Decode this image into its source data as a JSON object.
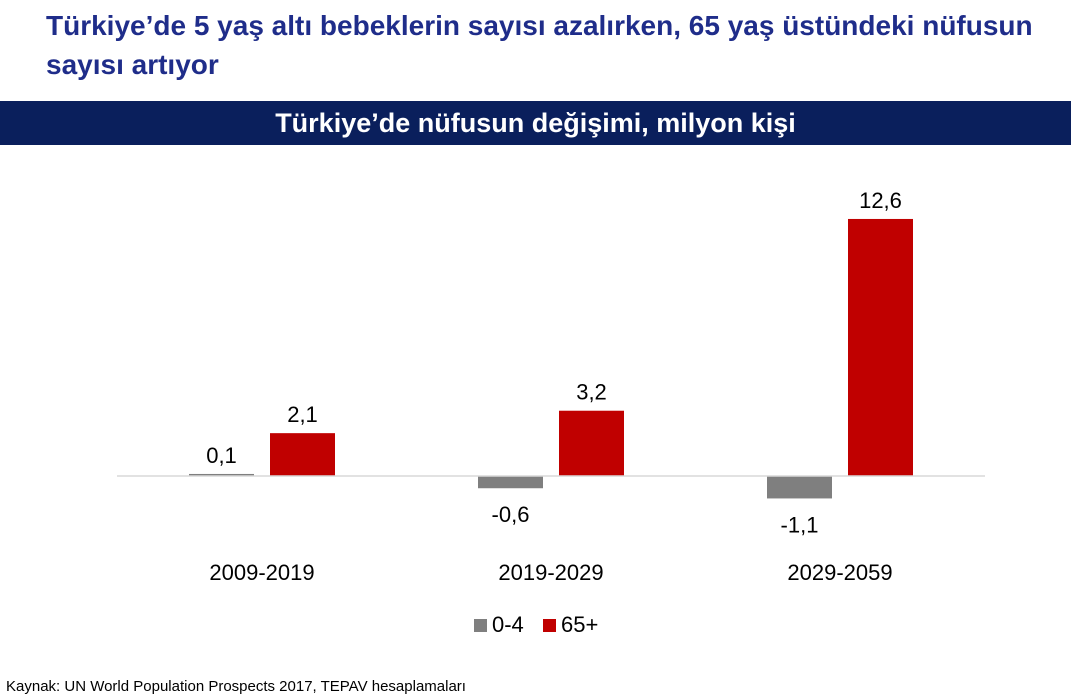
{
  "headline": "Türkiye’de 5 yaş altı bebeklerin sayısı azalırken, 65 yaş üstündeki nüfusun sayısı artıyor",
  "source": "Kaynak: UN World Population Prospects 2017, TEPAV hesaplamaları",
  "chart_data": {
    "type": "bar",
    "title": "Türkiye’de nüfusun değişimi, milyon kişi",
    "categories": [
      "2009-2019",
      "2019-2029",
      "2029-2059"
    ],
    "series": [
      {
        "name": "0-4",
        "values": [
          0.1,
          -0.6,
          -1.1
        ],
        "labels": [
          "0,1",
          "-0,6",
          "-1,1"
        ],
        "color": "#7f7f7f"
      },
      {
        "name": "65+",
        "values": [
          2.1,
          3.2,
          12.6
        ],
        "labels": [
          "2,1",
          "3,2",
          "12,6"
        ],
        "color": "#c00000"
      }
    ],
    "legend": "bottom-center",
    "grid": false
  }
}
